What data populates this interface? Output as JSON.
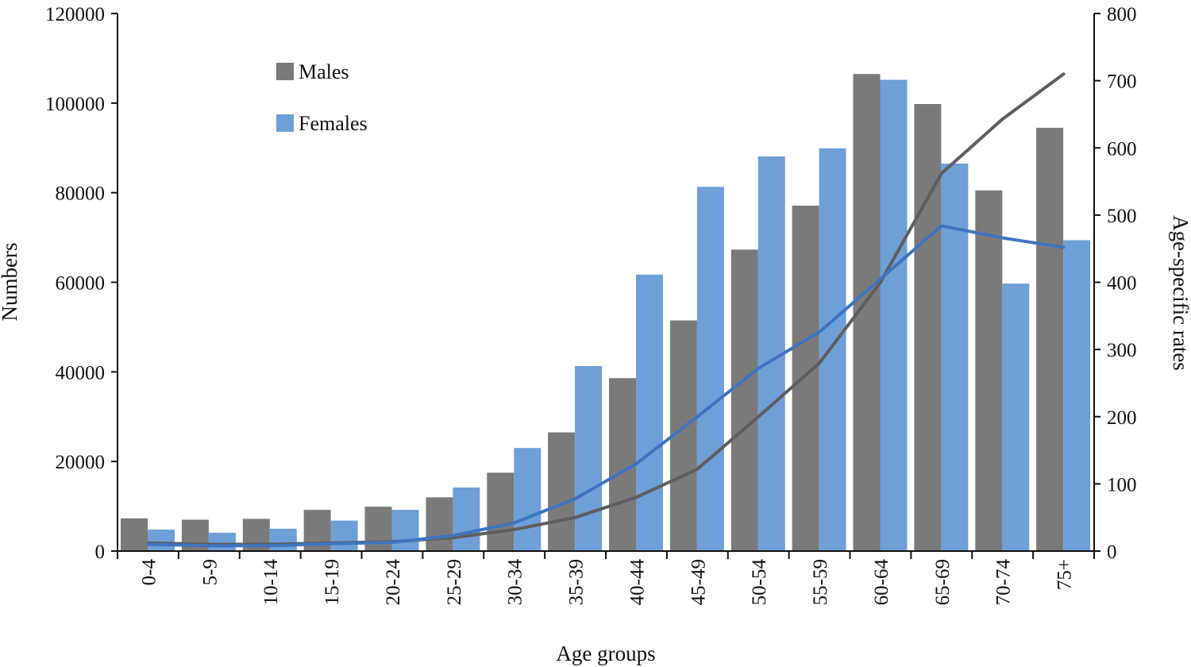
{
  "chart_data": {
    "type": "bar",
    "xlabel": "Age groups",
    "ylabel": "Numbers",
    "y2label": "Age-specific rates",
    "ylim": [
      0,
      120000
    ],
    "y2lim": [
      0,
      800
    ],
    "yticks": [
      "0",
      "20000",
      "40000",
      "60000",
      "80000",
      "100000",
      "120000"
    ],
    "y2ticks": [
      "0",
      "100",
      "200",
      "300",
      "400",
      "500",
      "600",
      "700",
      "800"
    ],
    "categories": [
      "0-4",
      "5-9",
      "10-14",
      "15-19",
      "20-24",
      "25-29",
      "30-34",
      "35-39",
      "40-44",
      "45-49",
      "50-54",
      "55-59",
      "60-64",
      "65-69",
      "70-74",
      "75+"
    ],
    "legend_position": "top-left",
    "series": [
      {
        "name": "Males",
        "type": "bar",
        "axis": "left",
        "color": "#7b7a7b",
        "values": [
          7300,
          7000,
          7200,
          9200,
          9900,
          12000,
          17500,
          26500,
          38600,
          51500,
          67300,
          77100,
          106500,
          99800,
          80500,
          94500
        ]
      },
      {
        "name": "Females",
        "type": "bar",
        "axis": "left",
        "color": "#6e9fd7",
        "values": [
          4800,
          4100,
          5000,
          6800,
          9200,
          14200,
          23000,
          41300,
          61700,
          81300,
          88100,
          89900,
          105200,
          86500,
          59700,
          69400
        ]
      },
      {
        "type": "line",
        "axis": "right",
        "color": "#5e5e5e",
        "values": [
          12,
          10,
          10,
          12,
          14,
          20,
          32,
          50,
          80,
          122,
          200,
          280,
          400,
          562,
          643,
          710
        ]
      },
      {
        "type": "line",
        "axis": "right",
        "color": "#3f74bf",
        "values": [
          10,
          8,
          8,
          11,
          13,
          23,
          42,
          78,
          130,
          200,
          272,
          326,
          405,
          484,
          466,
          452
        ]
      }
    ]
  }
}
